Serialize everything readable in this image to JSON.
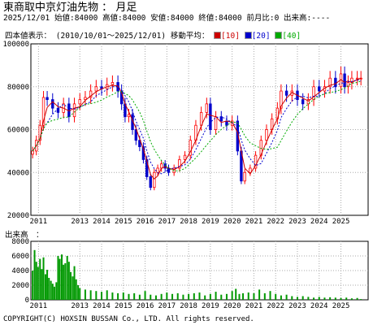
{
  "header": {
    "title": "東商取中京灯油先物",
    "separator": "：",
    "period_label": "月足"
  },
  "quote": {
    "date": "2025/12/01",
    "open_label": "始値",
    "open": "84000",
    "high_label": "高値",
    "high": "84000",
    "low_label": "安値",
    "low": "84000",
    "close_label": "終値",
    "close": "84000",
    "change_label": "前月比",
    "change": "0",
    "volume_label": "出来高",
    "volume": "----"
  },
  "legend": {
    "chart_kind": "四本値表示：",
    "range": "(2010/10/01～2025/12/01)",
    "ma_label": "移動平均：",
    "ma": [
      {
        "label": "[10]",
        "color": "#cc0000"
      },
      {
        "label": "[20]",
        "color": "#0000cc"
      },
      {
        "label": "[40]",
        "color": "#00aa00"
      }
    ]
  },
  "volume_section": {
    "label": "出来高　："
  },
  "copyright": "COPYRIGHT(C) HOXSIN BUSSAN Co., LTD. All rights reserved.",
  "colors": {
    "up_candle": "#ff0000",
    "down_candle": "#0000cc",
    "volume_bar": "#009900",
    "grid": "#aaaaaa"
  },
  "chart_data": [
    {
      "type": "candlestick",
      "title": "",
      "ylim": [
        20000,
        100000
      ],
      "y_ticks": [
        "100000",
        "80000",
        "60000",
        "40000",
        "20000"
      ],
      "x_ticks": [
        "2011",
        "2013",
        "2014",
        "2015",
        "2016",
        "2017",
        "2018",
        "2019",
        "2020",
        "2021",
        "2022",
        "2023",
        "2024",
        "2025"
      ],
      "moving_averages": [
        "10",
        "20",
        "40"
      ],
      "close": [
        [
          2010.83,
          50000
        ],
        [
          2011.0,
          55000
        ],
        [
          2011.17,
          62000
        ],
        [
          2011.33,
          75000
        ],
        [
          2011.5,
          74000
        ],
        [
          2011.75,
          70000
        ],
        [
          2012.0,
          68000
        ],
        [
          2012.25,
          72000
        ],
        [
          2012.5,
          66000
        ],
        [
          2012.75,
          72000
        ],
        [
          2013.0,
          74000
        ],
        [
          2013.25,
          75000
        ],
        [
          2013.5,
          78000
        ],
        [
          2013.75,
          80000
        ],
        [
          2014.0,
          79000
        ],
        [
          2014.25,
          81000
        ],
        [
          2014.5,
          82000
        ],
        [
          2014.75,
          78000
        ],
        [
          2014.92,
          72000
        ],
        [
          2015.08,
          66000
        ],
        [
          2015.25,
          67000
        ],
        [
          2015.42,
          60000
        ],
        [
          2015.58,
          55000
        ],
        [
          2015.75,
          52000
        ],
        [
          2015.92,
          46000
        ],
        [
          2016.08,
          38000
        ],
        [
          2016.25,
          33000
        ],
        [
          2016.42,
          40000
        ],
        [
          2016.58,
          42000
        ],
        [
          2016.75,
          44000
        ],
        [
          2016.92,
          42000
        ],
        [
          2017.08,
          40000
        ],
        [
          2017.33,
          42000
        ],
        [
          2017.58,
          46000
        ],
        [
          2017.83,
          48000
        ],
        [
          2018.08,
          55000
        ],
        [
          2018.33,
          62000
        ],
        [
          2018.58,
          68000
        ],
        [
          2018.83,
          72000
        ],
        [
          2019.0,
          60000
        ],
        [
          2019.25,
          66000
        ],
        [
          2019.5,
          64000
        ],
        [
          2019.75,
          62000
        ],
        [
          2020.0,
          64000
        ],
        [
          2020.25,
          50000
        ],
        [
          2020.42,
          36000
        ],
        [
          2020.58,
          40000
        ],
        [
          2020.83,
          42000
        ],
        [
          2021.08,
          48000
        ],
        [
          2021.33,
          55000
        ],
        [
          2021.58,
          60000
        ],
        [
          2021.83,
          65000
        ],
        [
          2022.08,
          70000
        ],
        [
          2022.25,
          78000
        ],
        [
          2022.5,
          76000
        ],
        [
          2022.75,
          78000
        ],
        [
          2023.0,
          74000
        ],
        [
          2023.25,
          72000
        ],
        [
          2023.5,
          74000
        ],
        [
          2023.75,
          80000
        ],
        [
          2024.0,
          78000
        ],
        [
          2024.25,
          80000
        ],
        [
          2024.5,
          84000
        ],
        [
          2024.75,
          80000
        ],
        [
          2025.0,
          86000
        ],
        [
          2025.17,
          80000
        ],
        [
          2025.33,
          82000
        ],
        [
          2025.5,
          84000
        ],
        [
          2025.75,
          84000
        ],
        [
          2025.92,
          84000
        ]
      ]
    },
    {
      "type": "bar",
      "title": "",
      "ylim": [
        0,
        8000
      ],
      "y_ticks": [
        "8000",
        "6000",
        "4000",
        "2000",
        "0"
      ],
      "x_ticks": [
        "2011",
        "2013",
        "2014",
        "2015",
        "2016",
        "2017",
        "2018",
        "2019",
        "2020",
        "2021",
        "2022",
        "2023",
        "2024",
        "2025"
      ],
      "values": [
        [
          2010.83,
          4000
        ],
        [
          2010.92,
          6800
        ],
        [
          2011.0,
          5200
        ],
        [
          2011.08,
          4500
        ],
        [
          2011.17,
          5600
        ],
        [
          2011.25,
          4200
        ],
        [
          2011.33,
          5800
        ],
        [
          2011.42,
          3500
        ],
        [
          2011.5,
          4100
        ],
        [
          2011.58,
          3000
        ],
        [
          2011.67,
          2600
        ],
        [
          2011.75,
          2200
        ],
        [
          2011.83,
          1800
        ],
        [
          2011.92,
          2400
        ],
        [
          2012.0,
          6000
        ],
        [
          2012.08,
          5600
        ],
        [
          2012.17,
          6200
        ],
        [
          2012.25,
          4800
        ],
        [
          2012.33,
          5000
        ],
        [
          2012.42,
          6000
        ],
        [
          2012.5,
          5200
        ],
        [
          2012.58,
          3800
        ],
        [
          2012.67,
          3200
        ],
        [
          2012.75,
          4600
        ],
        [
          2012.83,
          2800
        ],
        [
          2012.92,
          2000
        ],
        [
          2013.0,
          1600
        ],
        [
          2013.25,
          1400
        ],
        [
          2013.5,
          1300
        ],
        [
          2013.75,
          1200
        ],
        [
          2014.0,
          1100
        ],
        [
          2014.25,
          1300
        ],
        [
          2014.5,
          1000
        ],
        [
          2014.75,
          900
        ],
        [
          2015.0,
          1000
        ],
        [
          2015.25,
          800
        ],
        [
          2015.5,
          900
        ],
        [
          2015.75,
          700
        ],
        [
          2016.0,
          1200
        ],
        [
          2016.25,
          700
        ],
        [
          2016.5,
          600
        ],
        [
          2016.75,
          800
        ],
        [
          2017.0,
          1000
        ],
        [
          2017.25,
          800
        ],
        [
          2017.5,
          900
        ],
        [
          2017.75,
          700
        ],
        [
          2018.0,
          800
        ],
        [
          2018.25,
          900
        ],
        [
          2018.5,
          1000
        ],
        [
          2018.75,
          600
        ],
        [
          2019.0,
          800
        ],
        [
          2019.25,
          1100
        ],
        [
          2019.5,
          700
        ],
        [
          2019.75,
          800
        ],
        [
          2020.0,
          1200
        ],
        [
          2020.17,
          1500
        ],
        [
          2020.33,
          800
        ],
        [
          2020.5,
          900
        ],
        [
          2020.75,
          1000
        ],
        [
          2021.0,
          900
        ],
        [
          2021.25,
          1400
        ],
        [
          2021.5,
          900
        ],
        [
          2021.75,
          1200
        ],
        [
          2022.0,
          800
        ],
        [
          2022.25,
          600
        ],
        [
          2022.5,
          700
        ],
        [
          2022.75,
          500
        ],
        [
          2023.0,
          400
        ],
        [
          2023.25,
          500
        ],
        [
          2023.5,
          400
        ],
        [
          2023.75,
          300
        ],
        [
          2024.0,
          400
        ],
        [
          2024.25,
          300
        ],
        [
          2024.5,
          350
        ],
        [
          2024.75,
          300
        ],
        [
          2025.0,
          250
        ],
        [
          2025.25,
          300
        ],
        [
          2025.5,
          200
        ],
        [
          2025.75,
          250
        ],
        [
          2025.92,
          100
        ]
      ]
    }
  ]
}
